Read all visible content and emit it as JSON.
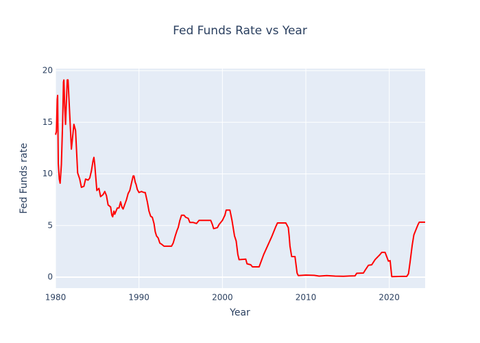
{
  "chart_data": {
    "type": "line",
    "title": "Fed Funds Rate vs Year",
    "x_label": "Year",
    "y_label": "Fed Funds rate",
    "xlim": [
      1980,
      2024.3
    ],
    "ylim": [
      -1.06,
      20.2
    ],
    "xticks": [
      1980,
      1990,
      2000,
      2010,
      2020
    ],
    "yticks": [
      0,
      5,
      10,
      15,
      20
    ],
    "grid": true,
    "background": "#e5ecf6",
    "series": [
      {
        "name": "Fed Funds rate",
        "color": "#ff0000",
        "x": [
          1980.0,
          1980.1,
          1980.2,
          1980.25,
          1980.33,
          1980.45,
          1980.55,
          1980.7,
          1980.85,
          1980.95,
          1981.0,
          1981.1,
          1981.2,
          1981.4,
          1981.5,
          1981.9,
          1982.0,
          1982.2,
          1982.4,
          1982.65,
          1982.9,
          1983.1,
          1983.4,
          1983.6,
          1983.9,
          1984.1,
          1984.3,
          1984.5,
          1984.6,
          1984.7,
          1984.85,
          1984.95,
          1985.2,
          1985.4,
          1985.7,
          1985.9,
          1986.1,
          1986.3,
          1986.6,
          1986.75,
          1986.85,
          1987.0,
          1987.1,
          1987.4,
          1987.6,
          1987.8,
          1987.95,
          1988.1,
          1988.5,
          1988.7,
          1988.9,
          1989.1,
          1989.3,
          1989.4,
          1989.55,
          1989.65,
          1989.8,
          1990.0,
          1990.3,
          1990.6,
          1990.75,
          1991.0,
          1991.2,
          1991.4,
          1991.6,
          1991.8,
          1991.95,
          1992.1,
          1992.3,
          1992.5,
          1992.7,
          1993.0,
          1993.6,
          1993.9,
          1994.1,
          1994.35,
          1994.55,
          1994.7,
          1994.9,
          1995.1,
          1995.4,
          1995.6,
          1995.9,
          1996.1,
          1996.5,
          1996.9,
          1997.2,
          1997.9,
          1998.6,
          1998.8,
          1998.95,
          1999.4,
          1999.6,
          1999.8,
          2000.0,
          2000.3,
          2000.45,
          2000.9,
          2001.15,
          2001.45,
          2001.65,
          2001.85,
          2002.0,
          2002.8,
          2002.95,
          2003.4,
          2003.6,
          2004.4,
          2004.95,
          2005.9,
          2006.4,
          2006.6,
          2007.6,
          2007.9,
          2008.0,
          2008.1,
          2008.3,
          2008.7,
          2008.95,
          2009.1,
          2010.0,
          2011.0,
          2011.6,
          2012.5,
          2013.5,
          2014.5,
          2015.9,
          2016.1,
          2016.9,
          2017.1,
          2017.5,
          2017.9,
          2018.3,
          2018.9,
          2019.1,
          2019.5,
          2019.9,
          2020.1,
          2020.3,
          2021.5,
          2022.1,
          2022.3,
          2022.5,
          2022.75,
          2022.95,
          2023.2,
          2023.45,
          2023.6,
          2024.3
        ],
        "values": [
          13.8,
          14.1,
          17.2,
          17.6,
          11.0,
          9.5,
          9.1,
          10.9,
          15.0,
          18.9,
          19.1,
          16.5,
          14.8,
          19.1,
          19.1,
          12.4,
          13.2,
          14.8,
          14.2,
          10.1,
          9.5,
          8.7,
          8.8,
          9.5,
          9.4,
          9.6,
          10.3,
          11.3,
          11.6,
          10.9,
          9.4,
          8.4,
          8.6,
          7.8,
          8.0,
          8.3,
          7.9,
          7.0,
          6.8,
          6.0,
          5.85,
          6.4,
          6.1,
          6.7,
          6.7,
          7.3,
          6.8,
          6.6,
          7.5,
          8.1,
          8.4,
          9.1,
          9.8,
          9.8,
          9.2,
          9.0,
          8.5,
          8.2,
          8.3,
          8.2,
          8.2,
          7.3,
          6.4,
          5.9,
          5.8,
          5.2,
          4.4,
          4.0,
          3.8,
          3.3,
          3.2,
          3.0,
          3.0,
          3.0,
          3.3,
          4.0,
          4.5,
          4.8,
          5.5,
          6.0,
          6.0,
          5.8,
          5.7,
          5.3,
          5.3,
          5.2,
          5.5,
          5.5,
          5.5,
          5.1,
          4.7,
          4.8,
          5.1,
          5.3,
          5.5,
          6.0,
          6.5,
          6.5,
          5.5,
          4.0,
          3.5,
          2.2,
          1.7,
          1.75,
          1.3,
          1.2,
          1.0,
          1.0,
          2.2,
          3.9,
          4.9,
          5.25,
          5.25,
          4.8,
          4.0,
          3.0,
          2.0,
          2.0,
          0.4,
          0.15,
          0.2,
          0.18,
          0.1,
          0.15,
          0.1,
          0.09,
          0.13,
          0.38,
          0.4,
          0.66,
          1.15,
          1.2,
          1.7,
          2.2,
          2.4,
          2.4,
          1.55,
          1.6,
          0.05,
          0.08,
          0.08,
          0.33,
          1.5,
          3.1,
          4.1,
          4.6,
          5.1,
          5.33,
          5.33
        ]
      }
    ]
  }
}
